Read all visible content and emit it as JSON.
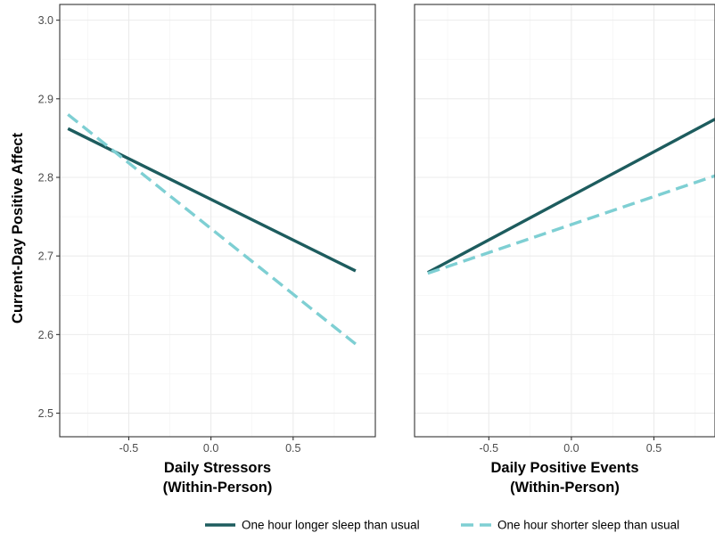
{
  "chart_data": {
    "type": "line",
    "ylabel": "Current-Day Positive Affect",
    "ylim": [
      2.47,
      3.02
    ],
    "y_ticks": [
      2.5,
      2.6,
      2.7,
      2.8,
      2.9,
      3.0
    ],
    "y_tick_labels": [
      "2.5",
      "2.6",
      "2.7",
      "2.8",
      "2.9",
      "3.0"
    ],
    "grid": true,
    "legend_position": "bottom",
    "legend": [
      {
        "key": "longer",
        "label": "One hour longer sleep than usual",
        "color": "#1d5c5e",
        "dash": "solid"
      },
      {
        "key": "shorter",
        "label": "One hour shorter sleep than usual",
        "color": "#7ecfd3",
        "dash": "dashed"
      }
    ],
    "panels": [
      {
        "xlabel_line1": "Daily Stressors",
        "xlabel_line2": "(Within-Person)",
        "xlim": [
          -0.92,
          1.0
        ],
        "x_ticks": [
          -0.5,
          0.0,
          0.5
        ],
        "x_tick_labels": [
          "-0.5",
          "0.0",
          "0.5"
        ],
        "series": [
          {
            "key": "longer",
            "x": [
              -0.87,
              0.88
            ],
            "y": [
              2.862,
              2.681
            ]
          },
          {
            "key": "shorter",
            "x": [
              -0.87,
              0.88
            ],
            "y": [
              2.88,
              2.588
            ]
          }
        ]
      },
      {
        "xlabel_line1": "Daily Positive Events",
        "xlabel_line2": "(Within-Person)",
        "xlim": [
          -0.95,
          0.87
        ],
        "x_ticks": [
          -0.5,
          0.0,
          0.5
        ],
        "x_tick_labels": [
          "-0.5",
          "0.0",
          "0.5"
        ],
        "series": [
          {
            "key": "longer",
            "x": [
              -0.87,
              0.87
            ],
            "y": [
              2.679,
              2.874
            ]
          },
          {
            "key": "shorter",
            "x": [
              -0.87,
              0.87
            ],
            "y": [
              2.678,
              2.802
            ]
          }
        ]
      }
    ]
  }
}
